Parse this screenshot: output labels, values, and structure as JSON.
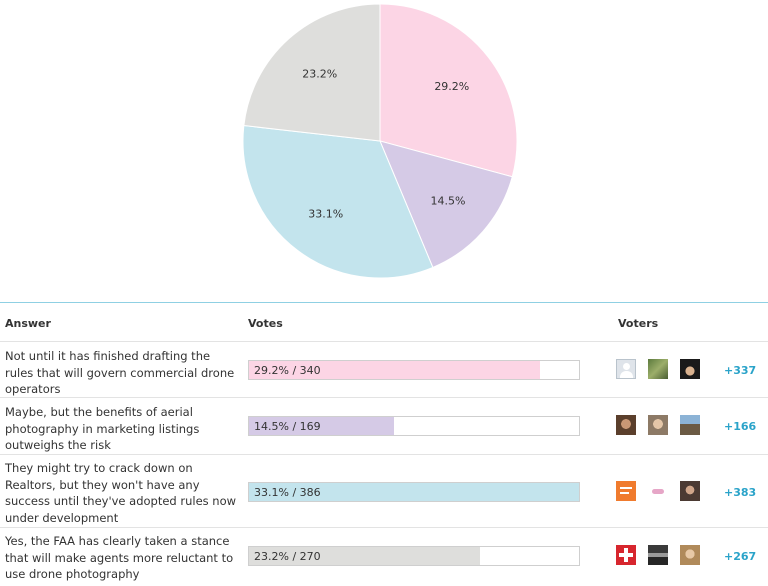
{
  "chart_data": {
    "type": "pie",
    "slices": [
      {
        "label": "29.2%",
        "value": 29.2,
        "color": "#fcd5e5"
      },
      {
        "label": "14.5%",
        "value": 14.5,
        "color": "#d5cae6"
      },
      {
        "label": "33.1%",
        "value": 33.1,
        "color": "#c3e4ed"
      },
      {
        "label": "23.2%",
        "value": 23.2,
        "color": "#dededc"
      }
    ],
    "start": "12 o'clock",
    "direction": "clockwise"
  },
  "table": {
    "headers": {
      "answer": "Answer",
      "votes": "Votes",
      "voters": "Voters"
    },
    "rows": [
      {
        "answer": "Not until it has finished drafting the rules that will govern commercial drone operators",
        "vote_label": "29.2% / 340",
        "percent": 29.2,
        "votes": 340,
        "color": "#fcd5e5",
        "more": "+337",
        "avatars": [
          "placeholder-avatar",
          "photo-avatar",
          "photo-avatar"
        ]
      },
      {
        "answer": "Maybe, but the benefits of aerial photography in marketing listings outweighs the risk",
        "vote_label": "14.5% / 169",
        "percent": 14.5,
        "votes": 169,
        "color": "#d5cae6",
        "more": "+166",
        "avatars": [
          "photo-avatar",
          "photo-avatar",
          "photo-avatar"
        ]
      },
      {
        "answer": "They might try to crack down on Realtors, but they won't have any success until they've adopted rules now under development",
        "vote_label": "33.1% / 386",
        "percent": 33.1,
        "votes": 386,
        "color": "#c3e4ed",
        "more": "+383",
        "avatars": [
          "logo-avatar",
          "logo-avatar",
          "photo-avatar"
        ]
      },
      {
        "answer": "Yes, the FAA has clearly taken a stance that will make agents more reluctant to use drone photography",
        "vote_label": "23.2% / 270",
        "percent": 23.2,
        "votes": 270,
        "color": "#dededc",
        "more": "+267",
        "avatars": [
          "logo-avatar",
          "photo-avatar",
          "photo-avatar"
        ]
      }
    ]
  }
}
